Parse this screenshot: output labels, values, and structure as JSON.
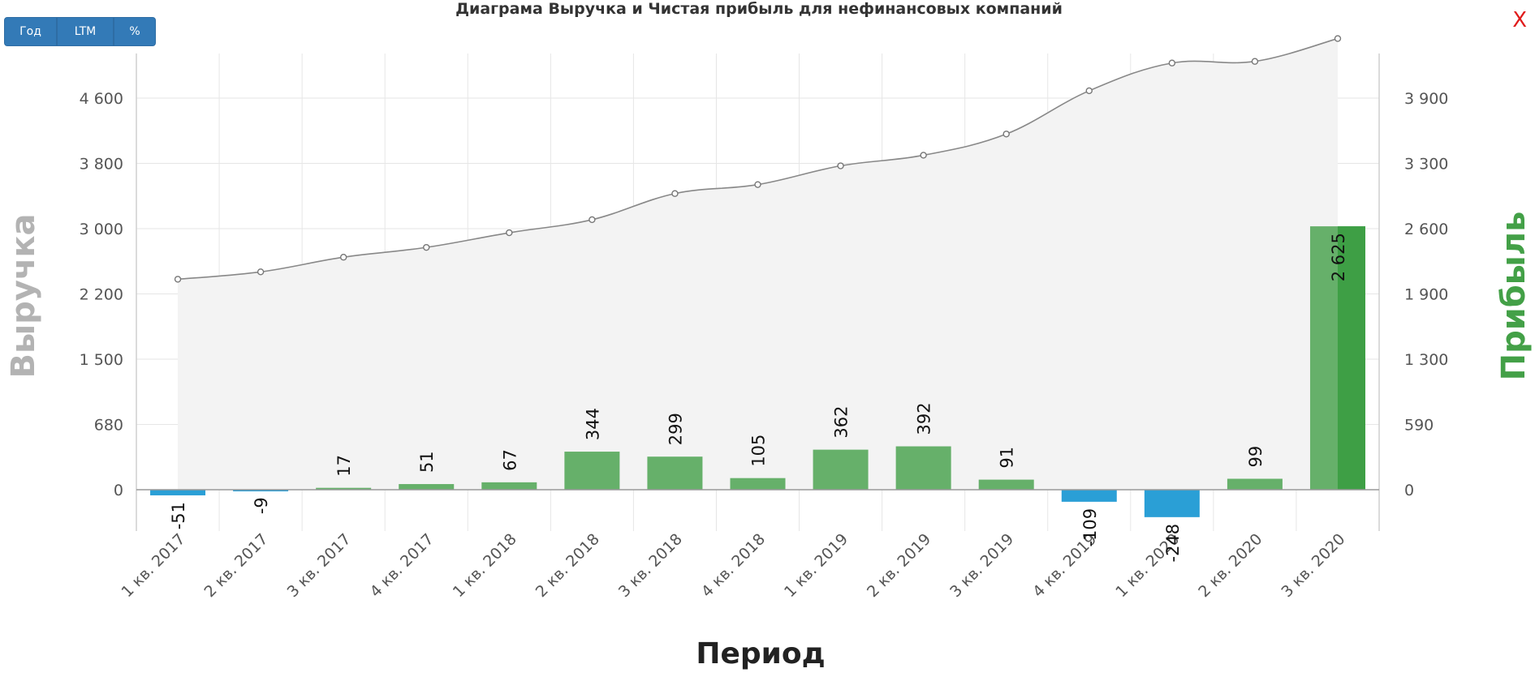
{
  "title": "Диаграма Выручка и Чистая прибыль для нефинансовых компаний",
  "buttons": {
    "year": "Год",
    "ltm": "LTM",
    "percent": "%"
  },
  "close_label": "X",
  "colors": {
    "positive": "#66b06a",
    "negative": "#2a9fd6",
    "line": "#888888",
    "area": "#f3f3f3",
    "profit_title": "#43a047",
    "button": "#337ab7",
    "close": "#e01b1b"
  },
  "chart_data": {
    "type": "bar",
    "xlabel": "Период",
    "ylabel_left": "Выручка",
    "ylabel_right": "Прибыль",
    "categories": [
      "1 кв. 2017",
      "2 кв. 2017",
      "3 кв. 2017",
      "4 кв. 2017",
      "1 кв. 2018",
      "2 кв. 2018",
      "3 кв. 2018",
      "4 кв. 2018",
      "1 кв. 2019",
      "2 кв. 2019",
      "3 кв. 2019",
      "4 кв. 2019",
      "1 кв. 2020",
      "2 кв. 2020",
      "3 кв. 2020"
    ],
    "left_ticks": [
      "0",
      "680",
      "1 500",
      "2 200",
      "3 000",
      "3 800",
      "4 600"
    ],
    "right_ticks": [
      "0",
      "590",
      "1 300",
      "1 900",
      "2 600",
      "3 300",
      "3 900"
    ],
    "series": [
      {
        "type": "area-line",
        "axis": "left",
        "values": [
          2380,
          2470,
          2650,
          2770,
          2950,
          3110,
          3430,
          3540,
          3770,
          3900,
          4160,
          4690,
          5030,
          5050,
          5330
        ]
      },
      {
        "type": "bar",
        "axis": "right",
        "values": [
          -51,
          -9,
          17,
          51,
          67,
          344,
          299,
          105,
          362,
          392,
          91,
          -109,
          -248,
          99,
          2625
        ],
        "labels": [
          "-51",
          "-9",
          "17",
          "51",
          "67",
          "344",
          "299",
          "105",
          "362",
          "392",
          "91",
          "-109",
          "-248",
          "99",
          "2 625"
        ]
      }
    ],
    "grid": true,
    "legend": "none"
  }
}
